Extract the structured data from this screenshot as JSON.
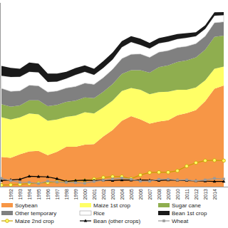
{
  "chart_data": {
    "type": "area",
    "stacked": true,
    "legend": "bottom",
    "tick_labels": "x",
    "grid": false,
    "categories": [
      null,
      "1992",
      "1993",
      "1994",
      "1995",
      "1996",
      "1997",
      "1998",
      "1999",
      "2000",
      "2001",
      "2002",
      "2003",
      "2004",
      "2005",
      "2006",
      "2007",
      "2008",
      "2009",
      "2010",
      "2011",
      "2012",
      "2013",
      "2014",
      null
    ],
    "ylim": [
      0,
      60
    ],
    "series": [
      {
        "name": "Soybean",
        "type": "area",
        "color": "#f79646",
        "values": [
          9.7,
          9.4,
          10.6,
          11.5,
          11.7,
          10.3,
          11.4,
          13.0,
          13.0,
          13.7,
          13.9,
          16.4,
          18.5,
          21.5,
          23.0,
          22.0,
          20.6,
          21.3,
          21.7,
          23.3,
          24.0,
          25.0,
          27.9,
          32.0,
          33.0
        ]
      },
      {
        "name": "Maize 1st crop",
        "type": "area",
        "color": "#ffff66",
        "values": [
          13.0,
          12.5,
          12.0,
          12.4,
          11.9,
          11.2,
          10.5,
          9.8,
          10.2,
          10.6,
          10.0,
          9.5,
          9.6,
          9.7,
          9.2,
          9.6,
          9.6,
          9.6,
          9.3,
          8.3,
          7.6,
          7.4,
          6.8,
          6.5,
          6.2
        ]
      },
      {
        "name": "Sugar cane",
        "type": "area",
        "color": "#8fae4f",
        "values": [
          4.2,
          4.2,
          3.9,
          4.3,
          4.6,
          4.8,
          4.8,
          4.9,
          4.9,
          4.8,
          5.0,
          5.1,
          5.4,
          5.6,
          5.8,
          6.4,
          7.0,
          8.1,
          8.6,
          9.1,
          9.6,
          9.8,
          10.0,
          10.4,
          10.1
        ]
      },
      {
        "name": "Other temporary",
        "type": "area",
        "color": "#808080",
        "values": [
          5.2,
          5.0,
          4.8,
          4.9,
          4.7,
          4.6,
          4.5,
          4.5,
          4.6,
          4.7,
          4.5,
          4.6,
          4.8,
          5.0,
          5.2,
          5.3,
          5.0,
          4.9,
          4.8,
          4.7,
          4.6,
          4.5,
          4.4,
          4.6,
          4.5
        ]
      },
      {
        "name": "Rice",
        "type": "area",
        "color": "#ffffff",
        "values": [
          4.1,
          4.7,
          4.6,
          4.4,
          4.4,
          3.3,
          3.1,
          3.1,
          3.8,
          3.7,
          3.1,
          3.2,
          3.2,
          3.7,
          4.0,
          3.0,
          2.9,
          2.9,
          2.9,
          2.8,
          2.8,
          2.4,
          2.4,
          2.3,
          2.2
        ]
      },
      {
        "name": "Bean 1st crop",
        "type": "area",
        "color": "#1a1a1a",
        "values": [
          3.2,
          3.0,
          2.6,
          3.0,
          2.9,
          2.7,
          2.6,
          2.2,
          2.2,
          2.1,
          2.0,
          2.2,
          2.3,
          2.0,
          1.9,
          2.0,
          1.8,
          1.7,
          1.8,
          1.6,
          1.5,
          1.3,
          1.2,
          1.1,
          1.0
        ]
      },
      {
        "name": "Maize 2nd crop",
        "type": "line",
        "color": "#c8a000",
        "marker": "circle",
        "values": [
          0.5,
          0.6,
          0.8,
          1.0,
          1.2,
          1.3,
          1.6,
          1.6,
          1.8,
          2.0,
          2.5,
          3.0,
          3.3,
          3.3,
          2.6,
          3.8,
          4.6,
          4.7,
          4.7,
          5.2,
          6.7,
          7.8,
          8.5,
          8.6,
          8.5
        ]
      },
      {
        "name": "Bean (other crops)",
        "type": "line",
        "color": "#000000",
        "marker": "triangle",
        "values": [
          2.0,
          2.2,
          2.4,
          3.4,
          3.3,
          3.2,
          2.6,
          1.7,
          2.0,
          2.1,
          2.0,
          2.1,
          2.0,
          2.2,
          2.1,
          2.2,
          2.1,
          2.0,
          2.2,
          2.1,
          2.0,
          1.9,
          1.8,
          1.7,
          1.7
        ]
      },
      {
        "name": "Wheat",
        "type": "line",
        "color": "#9a9a9a",
        "marker": "square",
        "values": [
          2.7,
          2.0,
          1.4,
          1.4,
          1.0,
          1.8,
          1.5,
          1.4,
          1.3,
          1.1,
          1.7,
          2.1,
          2.5,
          2.8,
          2.4,
          1.8,
          1.8,
          2.4,
          2.4,
          2.2,
          2.2,
          1.9,
          2.2,
          2.7,
          2.5
        ]
      }
    ]
  }
}
